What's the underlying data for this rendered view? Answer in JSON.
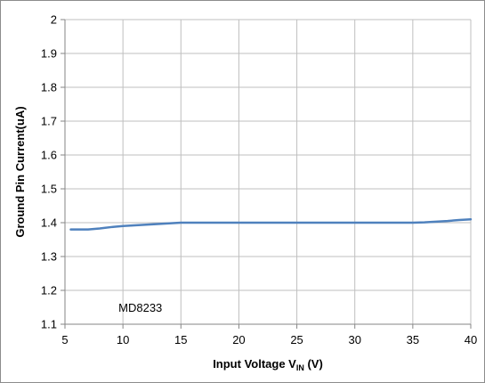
{
  "chart_data": {
    "type": "line",
    "title": "",
    "xlabel": {
      "main": "Input Voltage V",
      "subscript": "IN",
      "suffix": " (V)"
    },
    "ylabel": "Ground Pin Current(uA)",
    "xlim": [
      5,
      40
    ],
    "ylim": [
      1.1,
      2
    ],
    "xticks": [
      5,
      10,
      15,
      20,
      25,
      30,
      35,
      40
    ],
    "yticks": [
      1.1,
      1.2,
      1.3,
      1.4,
      1.5,
      1.6,
      1.7,
      1.8,
      1.9,
      2
    ],
    "x_tick_labels": [
      "5",
      "10",
      "15",
      "20",
      "25",
      "30",
      "35",
      "40"
    ],
    "y_tick_labels": [
      "1.1",
      "1.2",
      "1.3",
      "1.4",
      "1.5",
      "1.6",
      "1.7",
      "1.8",
      "1.9",
      "2"
    ],
    "grid": true,
    "legend": "none",
    "series": [
      {
        "x": [
          5.5,
          6.0,
          7.0,
          8.0,
          9.0,
          10.0,
          11.0,
          12.0,
          13.0,
          14.0,
          15.0,
          16.0,
          17.0,
          18.0,
          20.0,
          22.0,
          25.0,
          28.0,
          30.0,
          32.0,
          34.0,
          35.0,
          36.0,
          37.0,
          38.0,
          39.0,
          40.0
        ],
        "values": [
          1.38,
          1.38,
          1.38,
          1.383,
          1.387,
          1.39,
          1.392,
          1.394,
          1.396,
          1.398,
          1.4,
          1.4,
          1.4,
          1.4,
          1.4,
          1.4,
          1.4,
          1.4,
          1.4,
          1.4,
          1.4,
          1.4,
          1.401,
          1.403,
          1.405,
          1.408,
          1.41
        ],
        "color": "#4f81bd"
      }
    ],
    "annotations": [
      {
        "text": "MD8233",
        "x": 10,
        "y": 1.15
      }
    ],
    "colors": {
      "line": "#4f81bd",
      "grid": "#bfbfbf",
      "axis": "#868686",
      "frame": "#8c8c8c"
    }
  }
}
